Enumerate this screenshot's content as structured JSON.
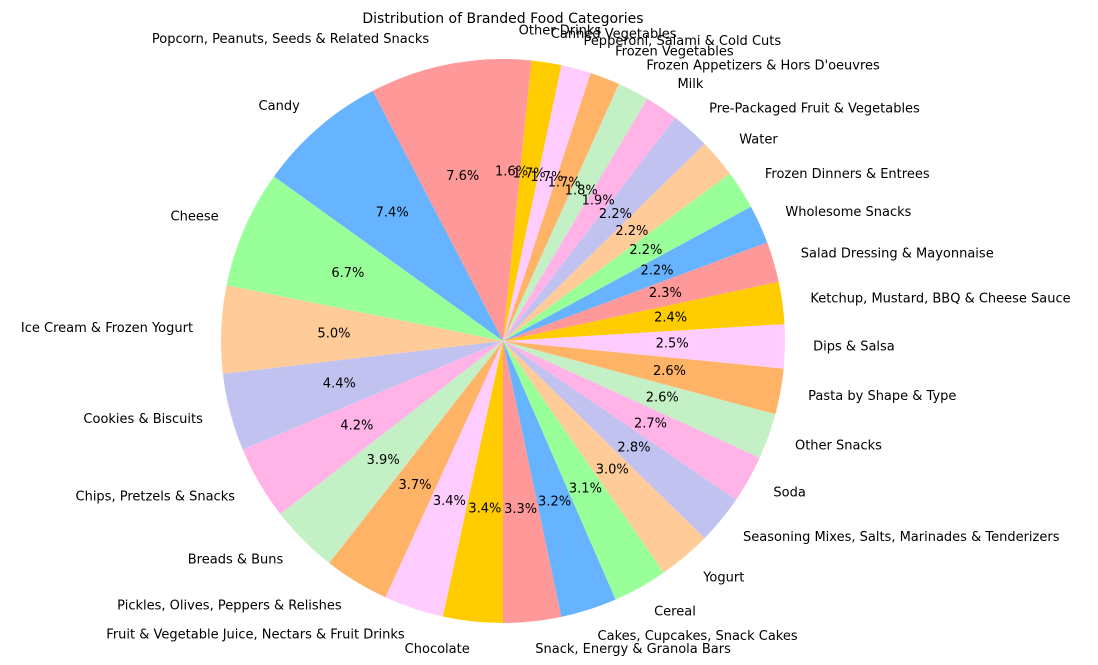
{
  "chart_data": {
    "type": "pie",
    "title": "Distribution of Branded Food Categories",
    "start_angle_deg": 90,
    "direction": "counterclockwise",
    "colors": [
      "#ff9999",
      "#66b3ff",
      "#99ff99",
      "#ffcc99",
      "#c2c2f0",
      "#ffb3e6",
      "#c4f0c5",
      "#ffb366",
      "#ffccff",
      "#ffcc00"
    ],
    "slices": [
      {
        "label": "Popcorn, Peanuts, Seeds & Related Snacks",
        "value": 7.6
      },
      {
        "label": "Candy",
        "value": 7.4
      },
      {
        "label": "Cheese",
        "value": 6.7
      },
      {
        "label": "Ice Cream & Frozen Yogurt",
        "value": 5.0
      },
      {
        "label": "Cookies & Biscuits",
        "value": 4.4
      },
      {
        "label": "Chips, Pretzels & Snacks",
        "value": 4.2
      },
      {
        "label": "Breads & Buns",
        "value": 3.9
      },
      {
        "label": "Pickles, Olives, Peppers & Relishes",
        "value": 3.7
      },
      {
        "label": "Fruit & Vegetable Juice, Nectars & Fruit Drinks",
        "value": 3.4
      },
      {
        "label": "Chocolate",
        "value": 3.4
      },
      {
        "label": "Snack, Energy & Granola Bars",
        "value": 3.3
      },
      {
        "label": "Cakes, Cupcakes, Snack Cakes",
        "value": 3.2
      },
      {
        "label": "Cereal",
        "value": 3.1
      },
      {
        "label": "Yogurt",
        "value": 3.0
      },
      {
        "label": "Seasoning Mixes, Salts, Marinades & Tenderizers",
        "value": 2.8
      },
      {
        "label": "Soda",
        "value": 2.7
      },
      {
        "label": "Other Snacks",
        "value": 2.6
      },
      {
        "label": "Pasta by Shape & Type",
        "value": 2.6
      },
      {
        "label": "Dips & Salsa",
        "value": 2.5
      },
      {
        "label": "Ketchup, Mustard, BBQ & Cheese Sauce",
        "value": 2.4
      },
      {
        "label": "Salad Dressing & Mayonnaise",
        "value": 2.3
      },
      {
        "label": "Wholesome Snacks",
        "value": 2.2
      },
      {
        "label": "Frozen Dinners & Entrees",
        "value": 2.2
      },
      {
        "label": "Water",
        "value": 2.2
      },
      {
        "label": "Pre-Packaged Fruit & Vegetables",
        "value": 2.2
      },
      {
        "label": "Milk",
        "value": 1.9
      },
      {
        "label": "Frozen Appetizers & Hors D'oeuvres",
        "value": 1.8
      },
      {
        "label": "Frozen Vegetables",
        "value": 1.7
      },
      {
        "label": "Pepperoni, Salami & Cold Cuts",
        "value": 1.7
      },
      {
        "label": "Canned Vegetables",
        "value": 1.7
      },
      {
        "label": "Other Drinks",
        "value": 1.6
      }
    ]
  }
}
